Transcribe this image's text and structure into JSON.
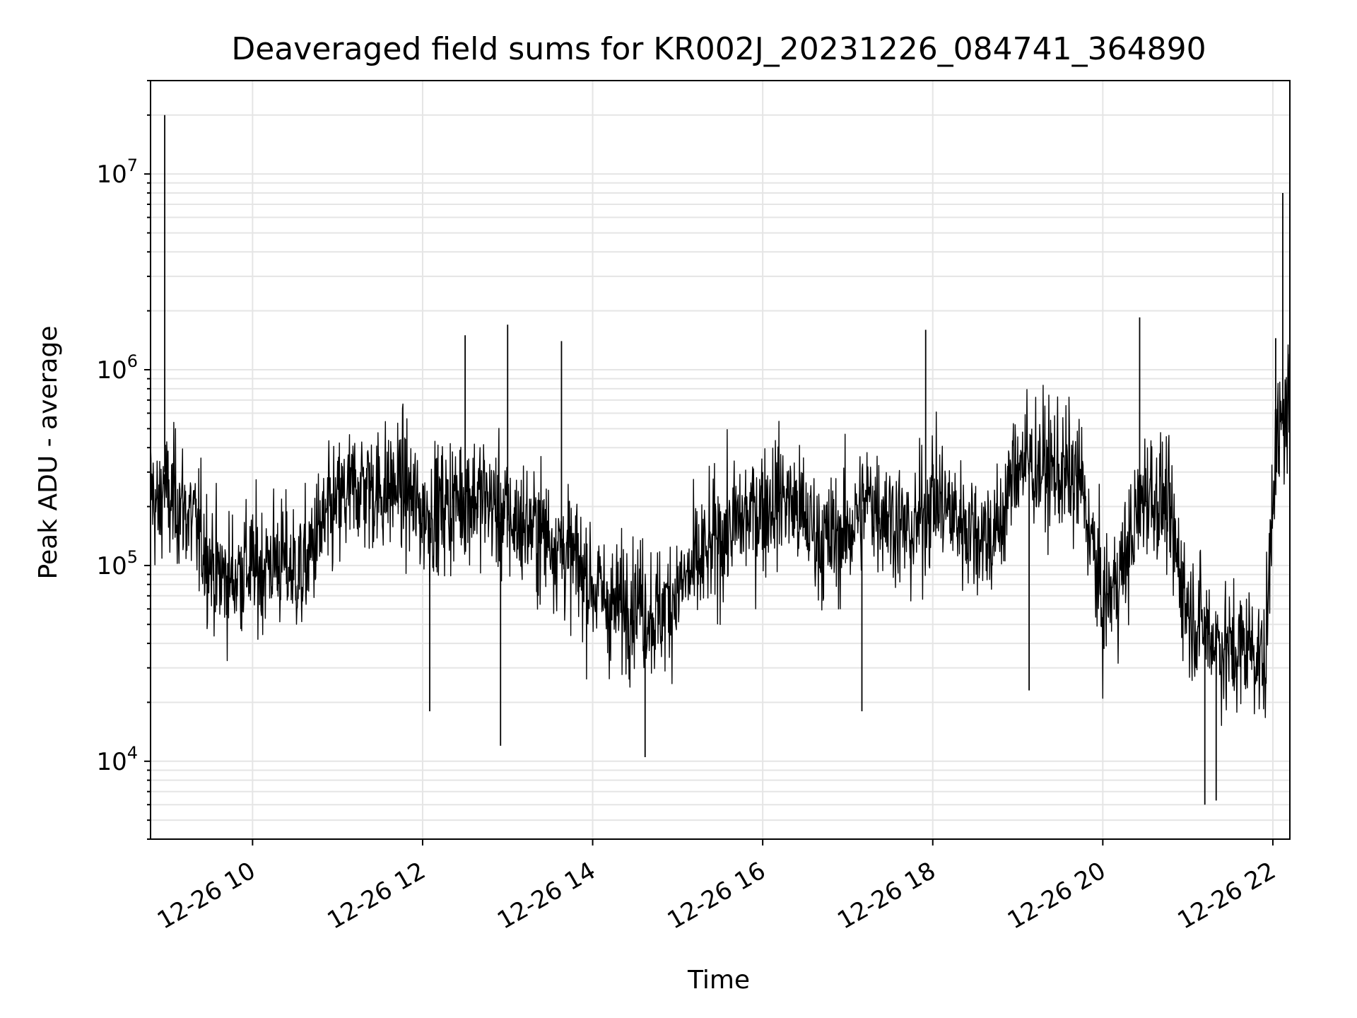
{
  "chart_data": {
    "type": "line",
    "title": "Deaveraged field sums for KR002J_20231226_084741_364890",
    "xlabel": "Time",
    "ylabel": "Peak ADU - average",
    "yscale": "log",
    "grid": true,
    "legend": "none",
    "line_color": "#000000",
    "grid_color": "#e5e5e5",
    "xlim": [
      "2023-12-26 08:48",
      "2023-12-26 22:12"
    ],
    "ylim": [
      4000,
      30000000
    ],
    "x_ticks": [
      {
        "at": "2023-12-26 10:00",
        "label": "12-26 10"
      },
      {
        "at": "2023-12-26 12:00",
        "label": "12-26 12"
      },
      {
        "at": "2023-12-26 14:00",
        "label": "12-26 14"
      },
      {
        "at": "2023-12-26 16:00",
        "label": "12-26 16"
      },
      {
        "at": "2023-12-26 18:00",
        "label": "12-26 18"
      },
      {
        "at": "2023-12-26 20:00",
        "label": "12-26 20"
      },
      {
        "at": "2023-12-26 22:00",
        "label": "12-26 22"
      }
    ],
    "y_ticks": [
      {
        "value": 10000,
        "label_base": "10",
        "label_exp": "4"
      },
      {
        "value": 100000,
        "label_base": "10",
        "label_exp": "5"
      },
      {
        "value": 1000000,
        "label_base": "10",
        "label_exp": "6"
      },
      {
        "value": 10000000,
        "label_base": "10",
        "label_exp": "7"
      }
    ],
    "series": [
      {
        "x": [
          "2023-12-26 08:48",
          "2023-12-26 08:54",
          "2023-12-26 08:58",
          "2023-12-26 09:00",
          "2023-12-26 09:06",
          "2023-12-26 09:15",
          "2023-12-26 09:25",
          "2023-12-26 09:35",
          "2023-12-26 09:45",
          "2023-12-26 09:55",
          "2023-12-26 10:05",
          "2023-12-26 10:15",
          "2023-12-26 10:25",
          "2023-12-26 10:35",
          "2023-12-26 10:45",
          "2023-12-26 11:00",
          "2023-12-26 11:15",
          "2023-12-26 11:30",
          "2023-12-26 11:45",
          "2023-12-26 12:00",
          "2023-12-26 12:15",
          "2023-12-26 12:30",
          "2023-12-26 12:45",
          "2023-12-26 13:00",
          "2023-12-26 13:15",
          "2023-12-26 13:30",
          "2023-12-26 13:45",
          "2023-12-26 14:00",
          "2023-12-26 14:15",
          "2023-12-26 14:30",
          "2023-12-26 14:45",
          "2023-12-26 15:00",
          "2023-12-26 15:15",
          "2023-12-26 15:30",
          "2023-12-26 15:45",
          "2023-12-26 16:00",
          "2023-12-26 16:15",
          "2023-12-26 16:30",
          "2023-12-26 16:45",
          "2023-12-26 17:00",
          "2023-12-26 17:15",
          "2023-12-26 17:30",
          "2023-12-26 17:45",
          "2023-12-26 18:00",
          "2023-12-26 18:15",
          "2023-12-26 18:30",
          "2023-12-26 18:45",
          "2023-12-26 19:00",
          "2023-12-26 19:15",
          "2023-12-26 19:30",
          "2023-12-26 19:45",
          "2023-12-26 20:00",
          "2023-12-26 20:15",
          "2023-12-26 20:30",
          "2023-12-26 20:45",
          "2023-12-26 21:00",
          "2023-12-26 21:15",
          "2023-12-26 21:30",
          "2023-12-26 21:45",
          "2023-12-26 21:55",
          "2023-12-26 22:00",
          "2023-12-26 22:06",
          "2023-12-26 22:12"
        ],
        "y": [
          250000,
          180000,
          300000,
          200000,
          220000,
          180000,
          130000,
          90000,
          85000,
          100000,
          95000,
          110000,
          100000,
          90000,
          140000,
          200000,
          260000,
          240000,
          260000,
          180000,
          200000,
          230000,
          220000,
          170000,
          160000,
          140000,
          110000,
          80000,
          60000,
          70000,
          55000,
          75000,
          100000,
          140000,
          170000,
          200000,
          230000,
          170000,
          130000,
          150000,
          220000,
          180000,
          140000,
          230000,
          180000,
          150000,
          140000,
          350000,
          320000,
          300000,
          260000,
          60000,
          100000,
          250000,
          200000,
          60000,
          45000,
          35000,
          40000,
          30000,
          300000,
          500000,
          700000
        ],
        "spikes": [
          {
            "x": "2023-12-26 08:58",
            "y": 20000000
          },
          {
            "x": "2023-12-26 22:07",
            "y": 8000000
          },
          {
            "x": "2023-12-26 12:55",
            "y": 12000
          },
          {
            "x": "2023-12-26 14:37",
            "y": 10500
          },
          {
            "x": "2023-12-26 21:12",
            "y": 6000
          },
          {
            "x": "2023-12-26 21:20",
            "y": 6300
          },
          {
            "x": "2023-12-26 13:00",
            "y": 1700000
          },
          {
            "x": "2023-12-26 20:26",
            "y": 1850000
          },
          {
            "x": "2023-12-26 17:55",
            "y": 1600000
          },
          {
            "x": "2023-12-26 13:38",
            "y": 1400000
          },
          {
            "x": "2023-12-26 12:30",
            "y": 1500000
          },
          {
            "x": "2023-12-26 22:02",
            "y": 1450000
          },
          {
            "x": "2023-12-26 12:05",
            "y": 18000
          },
          {
            "x": "2023-12-26 17:10",
            "y": 18000
          },
          {
            "x": "2023-12-26 19:08",
            "y": 23000
          }
        ]
      }
    ]
  }
}
